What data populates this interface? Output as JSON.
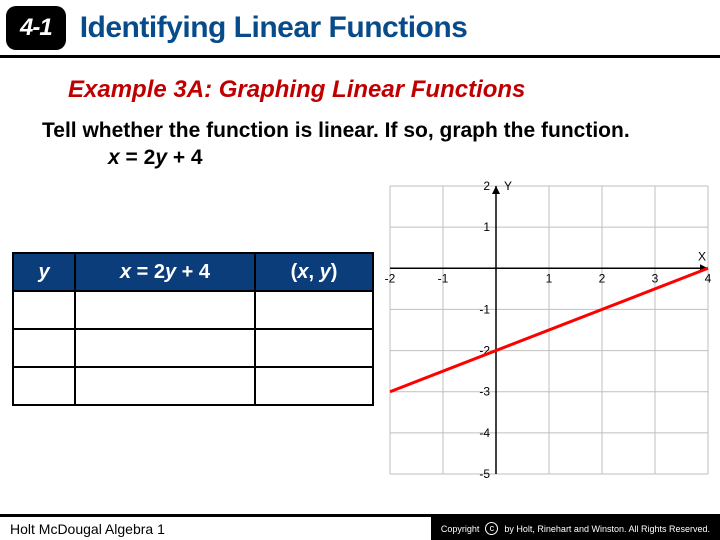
{
  "header": {
    "lesson_number": "4-1",
    "title": "Identifying Linear Functions"
  },
  "example": {
    "label": "Example 3A: Graphing Linear Functions",
    "instruction": "Tell whether the function is linear. If so, graph the function.",
    "equation_html": "x = 2y + 4"
  },
  "table": {
    "columns": [
      "y",
      "x = 2y + 4",
      "(x, y)"
    ],
    "empty_rows": 3
  },
  "chart": {
    "type": "line",
    "x_axis_label": "X",
    "y_axis_label": "Y",
    "xlim": [
      -2,
      4
    ],
    "ylim": [
      -5,
      2
    ],
    "xtick_step": 1,
    "ytick_step": 1,
    "grid_color": "#bfbfbf",
    "axis_color": "#000000",
    "background_color": "#ffffff",
    "line_color": "#ff0000",
    "line_width": 3,
    "tick_label_fontsize": 12,
    "axis_label_fontsize": 12,
    "line_points": [
      [
        -2,
        -3
      ],
      [
        4,
        0
      ]
    ]
  },
  "footer": {
    "left": "Holt McDougal Algebra 1",
    "right": "by Holt, Rinehart and Winston. All Rights Reserved."
  },
  "colors": {
    "header_title": "#084b8a",
    "example_title": "#c00000",
    "table_header_bg": "#0a3d7a",
    "rule": "#000000"
  }
}
